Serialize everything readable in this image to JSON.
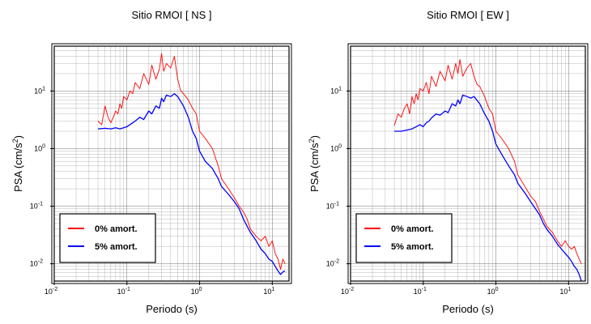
{
  "chart_data": [
    {
      "type": "line",
      "title": "Sitio RMOI [ NS ]",
      "xlabel": "Periodo (s)",
      "ylabel_main": "PSA (cm/s",
      "ylabel_sup": "2",
      "ylabel_close": ")",
      "xscale": "log",
      "yscale": "log",
      "xlim": [
        0.01,
        17
      ],
      "ylim": [
        0.005,
        60
      ],
      "grid": true,
      "legend_position": "bottom-left",
      "x_ticks": [
        {
          "base": "10",
          "exp": "-2"
        },
        {
          "base": "10",
          "exp": "-1"
        },
        {
          "base": "10",
          "exp": "0"
        },
        {
          "base": "10",
          "exp": "1"
        }
      ],
      "y_ticks": [
        {
          "base": "10",
          "exp": "-2"
        },
        {
          "base": "10",
          "exp": "-1"
        },
        {
          "base": "10",
          "exp": "0"
        },
        {
          "base": "10",
          "exp": "1"
        }
      ],
      "series": [
        {
          "name": "0% amort.",
          "color": "#ff0000",
          "x": [
            0.04,
            0.045,
            0.05,
            0.055,
            0.06,
            0.065,
            0.07,
            0.075,
            0.08,
            0.085,
            0.09,
            0.1,
            0.11,
            0.12,
            0.13,
            0.15,
            0.17,
            0.2,
            0.22,
            0.25,
            0.28,
            0.3,
            0.32,
            0.35,
            0.4,
            0.45,
            0.5,
            0.55,
            0.6,
            0.7,
            0.8,
            0.9,
            1.0,
            1.2,
            1.5,
            1.8,
            2.0,
            2.5,
            3.0,
            3.5,
            4.0,
            4.5,
            5.0,
            6.0,
            7.0,
            8.0,
            9.0,
            10.0,
            11.0,
            12.0,
            13.0,
            14.0,
            15.0
          ],
          "values": [
            3.0,
            2.6,
            5.5,
            3.5,
            2.8,
            3.5,
            4.5,
            4.0,
            6.0,
            5.0,
            8.0,
            7.0,
            10.0,
            9.0,
            14.0,
            11.0,
            20.0,
            13.0,
            28.0,
            16.0,
            24.0,
            45.0,
            22.0,
            30.0,
            25.0,
            40.0,
            16.0,
            10.0,
            9.0,
            7.0,
            5.0,
            4.0,
            2.0,
            1.5,
            1.0,
            0.5,
            0.3,
            0.2,
            0.14,
            0.1,
            0.08,
            0.06,
            0.04,
            0.03,
            0.025,
            0.03,
            0.02,
            0.025,
            0.015,
            0.012,
            0.008,
            0.012,
            0.01
          ]
        },
        {
          "name": "5% amort.",
          "color": "#0000ff",
          "x": [
            0.04,
            0.05,
            0.06,
            0.07,
            0.08,
            0.09,
            0.1,
            0.11,
            0.12,
            0.13,
            0.15,
            0.17,
            0.2,
            0.22,
            0.25,
            0.28,
            0.3,
            0.32,
            0.35,
            0.4,
            0.45,
            0.5,
            0.6,
            0.7,
            0.8,
            0.9,
            1.0,
            1.2,
            1.5,
            1.8,
            2.0,
            2.5,
            3.0,
            3.5,
            4.0,
            4.5,
            5.0,
            6.0,
            7.0,
            8.0,
            9.0,
            10.0,
            11.0,
            12.0,
            13.0,
            14.0,
            15.0
          ],
          "values": [
            2.2,
            2.25,
            2.2,
            2.3,
            2.2,
            2.3,
            2.4,
            2.6,
            2.8,
            3.0,
            3.5,
            3.2,
            4.5,
            4.0,
            5.5,
            5.0,
            7.5,
            6.5,
            8.5,
            8.0,
            9.0,
            8.0,
            5.5,
            3.5,
            2.0,
            1.5,
            0.9,
            0.6,
            0.45,
            0.3,
            0.22,
            0.16,
            0.12,
            0.09,
            0.06,
            0.045,
            0.035,
            0.025,
            0.018,
            0.015,
            0.012,
            0.011,
            0.009,
            0.0075,
            0.0065,
            0.0072,
            0.0075
          ]
        }
      ]
    },
    {
      "type": "line",
      "title": "Sitio RMOI [ EW ]",
      "xlabel": "Periodo (s)",
      "ylabel_main": "PSA (cm/s",
      "ylabel_sup": "2",
      "ylabel_close": ")",
      "xscale": "log",
      "yscale": "log",
      "xlim": [
        0.01,
        17
      ],
      "ylim": [
        0.005,
        60
      ],
      "grid": true,
      "legend_position": "bottom-left",
      "x_ticks": [
        {
          "base": "10",
          "exp": "-2"
        },
        {
          "base": "10",
          "exp": "-1"
        },
        {
          "base": "10",
          "exp": "0"
        },
        {
          "base": "10",
          "exp": "1"
        }
      ],
      "y_ticks": [
        {
          "base": "10",
          "exp": "-2"
        },
        {
          "base": "10",
          "exp": "-1"
        },
        {
          "base": "10",
          "exp": "0"
        },
        {
          "base": "10",
          "exp": "1"
        }
      ],
      "series": [
        {
          "name": "0% amort.",
          "color": "#ff0000",
          "x": [
            0.04,
            0.045,
            0.05,
            0.055,
            0.06,
            0.065,
            0.07,
            0.075,
            0.08,
            0.085,
            0.09,
            0.1,
            0.11,
            0.12,
            0.13,
            0.15,
            0.17,
            0.2,
            0.22,
            0.25,
            0.28,
            0.3,
            0.32,
            0.35,
            0.4,
            0.45,
            0.5,
            0.55,
            0.6,
            0.7,
            0.8,
            0.9,
            1.0,
            1.2,
            1.5,
            1.8,
            2.0,
            2.5,
            3.0,
            3.5,
            4.0,
            4.5,
            5.0,
            6.0,
            7.0,
            8.0,
            9.0,
            10.0,
            11.0,
            12.0,
            13.0,
            14.0,
            15.0
          ],
          "values": [
            2.5,
            4.0,
            3.5,
            5.0,
            6.0,
            4.0,
            8.0,
            6.0,
            9.0,
            7.0,
            11.0,
            10.0,
            14.0,
            9.0,
            18.0,
            12.0,
            22.0,
            15.0,
            28.0,
            16.0,
            30.0,
            20.0,
            35.0,
            18.0,
            25.0,
            30.0,
            18.0,
            13.0,
            12.0,
            8.0,
            5.0,
            4.0,
            2.0,
            1.5,
            1.0,
            0.6,
            0.35,
            0.22,
            0.15,
            0.12,
            0.08,
            0.06,
            0.045,
            0.035,
            0.025,
            0.02,
            0.025,
            0.02,
            0.018,
            0.02,
            0.015,
            0.012,
            0.01
          ]
        },
        {
          "name": "5% amort.",
          "color": "#0000ff",
          "x": [
            0.04,
            0.05,
            0.06,
            0.07,
            0.08,
            0.09,
            0.1,
            0.11,
            0.12,
            0.13,
            0.15,
            0.17,
            0.2,
            0.22,
            0.25,
            0.28,
            0.3,
            0.32,
            0.35,
            0.4,
            0.45,
            0.5,
            0.6,
            0.7,
            0.8,
            0.9,
            1.0,
            1.2,
            1.5,
            1.8,
            2.0,
            2.5,
            3.0,
            3.5,
            4.0,
            4.5,
            5.0,
            6.0,
            7.0,
            8.0,
            9.0,
            10.0,
            11.0,
            12.0,
            13.0,
            14.0,
            15.0
          ],
          "values": [
            2.0,
            2.0,
            2.1,
            2.2,
            2.4,
            2.6,
            2.4,
            2.8,
            3.0,
            3.4,
            4.0,
            3.8,
            4.5,
            4.2,
            6.0,
            5.5,
            7.0,
            6.0,
            8.5,
            8.0,
            7.5,
            8.0,
            6.0,
            4.0,
            3.0,
            2.0,
            1.2,
            0.8,
            0.5,
            0.35,
            0.25,
            0.17,
            0.12,
            0.09,
            0.07,
            0.05,
            0.04,
            0.03,
            0.022,
            0.018,
            0.015,
            0.013,
            0.011,
            0.009,
            0.008,
            0.0065,
            0.005
          ]
        }
      ]
    }
  ]
}
